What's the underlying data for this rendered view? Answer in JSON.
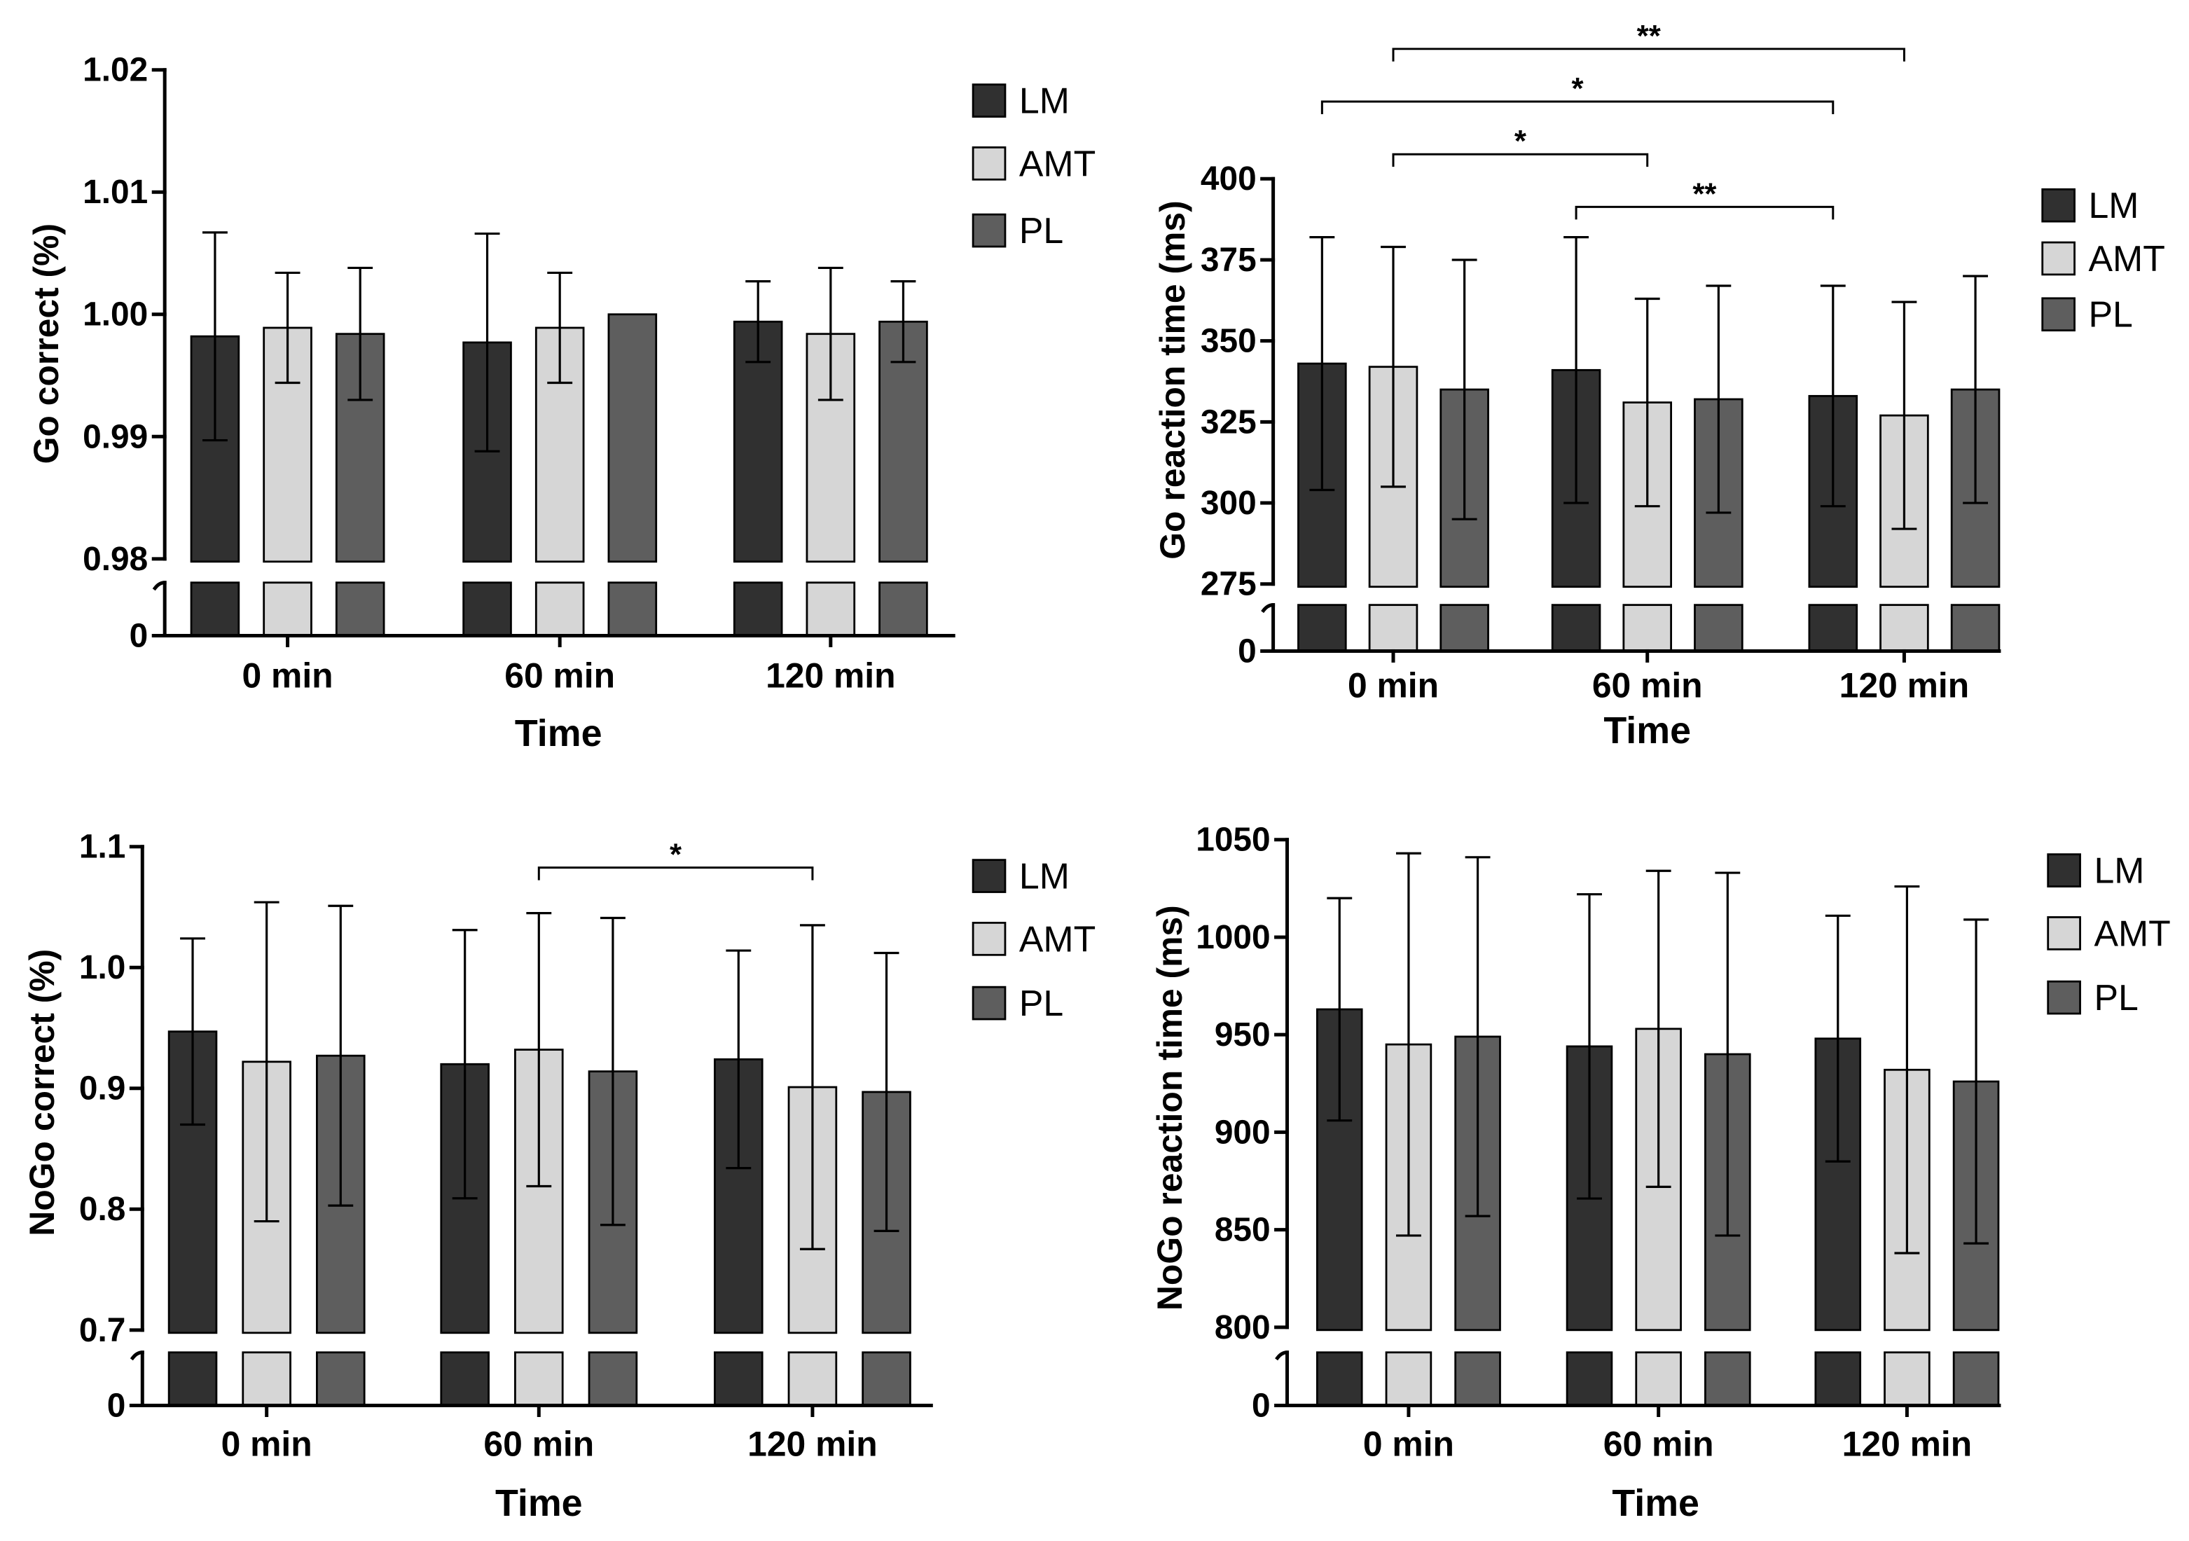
{
  "chart_data": [
    {
      "type": "bar",
      "ylabel": "Go correct (%)",
      "xlabel": "Time",
      "categories": [
        "0 min",
        "60 min",
        "120 min"
      ],
      "ylim": [
        0.98,
        1.02
      ],
      "yticks": [
        "0.98",
        "0.99",
        "1.00",
        "1.01",
        "1.02"
      ],
      "axis_break": true,
      "break_tick": "0",
      "series": [
        {
          "name": "LM",
          "color": "#303030",
          "values": [
            0.9982,
            0.9977,
            0.9994
          ],
          "errors": [
            0.0085,
            0.0089,
            0.0033
          ]
        },
        {
          "name": "AMT",
          "color": "#d6d6d6",
          "values": [
            0.9989,
            0.9989,
            0.9984
          ],
          "errors": [
            0.0045,
            0.0045,
            0.0054
          ]
        },
        {
          "name": "PL",
          "color": "#5e5e5e",
          "values": [
            0.9984,
            1.0,
            0.9994
          ],
          "errors": [
            0.0054,
            0,
            0.0033
          ]
        }
      ],
      "significance": []
    },
    {
      "type": "bar",
      "ylabel": "Go reaction time (ms)",
      "xlabel": "Time",
      "categories": [
        "0 min",
        "60 min",
        "120 min"
      ],
      "ylim": [
        275,
        400
      ],
      "yticks": [
        "275",
        "300",
        "325",
        "350",
        "375",
        "400"
      ],
      "axis_break": true,
      "break_tick": "0",
      "series": [
        {
          "name": "LM",
          "color": "#303030",
          "values": [
            343,
            341,
            333
          ],
          "errors": [
            39,
            41,
            34
          ]
        },
        {
          "name": "AMT",
          "color": "#d6d6d6",
          "values": [
            342,
            331,
            327
          ],
          "errors": [
            37,
            32,
            35
          ]
        },
        {
          "name": "PL",
          "color": "#5e5e5e",
          "values": [
            335,
            332,
            335
          ],
          "errors": [
            40,
            35,
            35
          ]
        }
      ],
      "significance": [
        {
          "from": {
            "category": 0,
            "series": 1
          },
          "to": {
            "category": 2,
            "series": 1
          },
          "label": "**"
        },
        {
          "from": {
            "category": 0,
            "series": 0
          },
          "to": {
            "category": 2,
            "series": 0
          },
          "label": "*"
        },
        {
          "from": {
            "category": 0,
            "series": 1
          },
          "to": {
            "category": 1,
            "series": 1
          },
          "label": "*"
        },
        {
          "from": {
            "category": 1,
            "series": 0
          },
          "to": {
            "category": 2,
            "series": 0
          },
          "label": "**"
        }
      ]
    },
    {
      "type": "bar",
      "ylabel": "NoGo correct (%)",
      "xlabel": "Time",
      "categories": [
        "0 min",
        "60 min",
        "120 min"
      ],
      "ylim": [
        0.7,
        1.1
      ],
      "yticks": [
        "0.7",
        "0.8",
        "0.9",
        "1.0",
        "1.1"
      ],
      "axis_break": true,
      "break_tick": "0",
      "series": [
        {
          "name": "LM",
          "color": "#303030",
          "values": [
            0.947,
            0.92,
            0.924
          ],
          "errors": [
            0.077,
            0.111,
            0.09
          ]
        },
        {
          "name": "AMT",
          "color": "#d6d6d6",
          "values": [
            0.922,
            0.932,
            0.901
          ],
          "errors": [
            0.132,
            0.113,
            0.134
          ]
        },
        {
          "name": "PL",
          "color": "#5e5e5e",
          "values": [
            0.927,
            0.914,
            0.897
          ],
          "errors": [
            0.124,
            0.127,
            0.115
          ]
        }
      ],
      "significance": [
        {
          "from": {
            "category": 1,
            "series": 1
          },
          "to": {
            "category": 2,
            "series": 1
          },
          "label": "*"
        }
      ]
    },
    {
      "type": "bar",
      "ylabel": "NoGo reaction time (ms)",
      "xlabel": "Time",
      "categories": [
        "0 min",
        "60 min",
        "120 min"
      ],
      "ylim": [
        800,
        1050
      ],
      "yticks": [
        "800",
        "850",
        "900",
        "950",
        "1000",
        "1050"
      ],
      "axis_break": true,
      "break_tick": "0",
      "series": [
        {
          "name": "LM",
          "color": "#303030",
          "values": [
            963,
            944,
            948
          ],
          "errors": [
            57,
            78,
            63
          ]
        },
        {
          "name": "AMT",
          "color": "#d6d6d6",
          "values": [
            945,
            953,
            932
          ],
          "errors": [
            98,
            81,
            94
          ]
        },
        {
          "name": "PL",
          "color": "#5e5e5e",
          "values": [
            949,
            940,
            926
          ],
          "errors": [
            92,
            93,
            83
          ]
        }
      ],
      "significance": []
    }
  ]
}
